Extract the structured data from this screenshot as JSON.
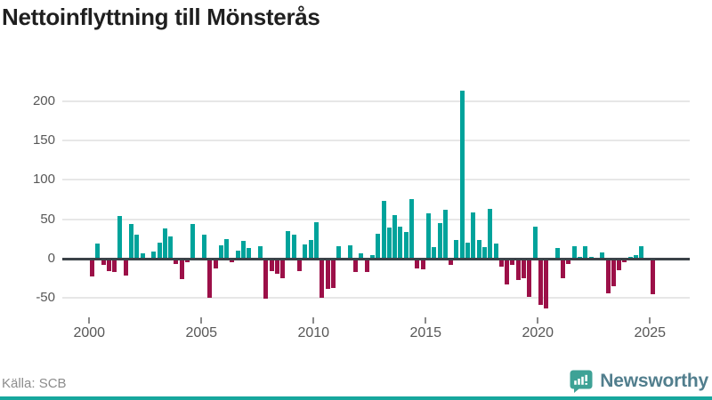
{
  "title": "Nettoinflyttning till Mönsterås",
  "source_label": "Källa: SCB",
  "logo": {
    "text": "Newsworthy",
    "icon": "newsworthy-speech-bubble-chart-icon"
  },
  "colors": {
    "positive_bar": "#00a39b",
    "negative_bar": "#9c1048",
    "title_text": "#1f1f1f",
    "axis_text": "#575757",
    "source_text": "#8c8c8c",
    "gridline": "#e7e7e7",
    "zero_line": "#3b4248",
    "logo_text": "#517e8d",
    "logo_bubble": "#3ea296",
    "bottom_strip": "#17a79d"
  },
  "chart_data": {
    "type": "bar",
    "title": "Nettoinflyttning till Mönsterås",
    "xlabel": "",
    "ylabel": "",
    "frequency": "quarterly",
    "legend": "none",
    "grid": "horizontal",
    "ylim": [
      -70,
      220
    ],
    "y_ticks": [
      200,
      150,
      100,
      50,
      0,
      -50
    ],
    "x_tick_years": [
      2000,
      2005,
      2010,
      2015,
      2020,
      2025
    ],
    "periods": [
      "2000Q1",
      "2000Q2",
      "2000Q3",
      "2000Q4",
      "2001Q1",
      "2001Q2",
      "2001Q3",
      "2001Q4",
      "2002Q1",
      "2002Q2",
      "2002Q3",
      "2002Q4",
      "2003Q1",
      "2003Q2",
      "2003Q3",
      "2003Q4",
      "2004Q1",
      "2004Q2",
      "2004Q3",
      "2004Q4",
      "2005Q1",
      "2005Q2",
      "2005Q3",
      "2005Q4",
      "2006Q1",
      "2006Q2",
      "2006Q3",
      "2006Q4",
      "2007Q1",
      "2007Q2",
      "2007Q3",
      "2007Q4",
      "2008Q1",
      "2008Q2",
      "2008Q3",
      "2008Q4",
      "2009Q1",
      "2009Q2",
      "2009Q3",
      "2009Q4",
      "2010Q1",
      "2010Q2",
      "2010Q3",
      "2010Q4",
      "2011Q1",
      "2011Q2",
      "2011Q3",
      "2011Q4",
      "2012Q1",
      "2012Q2",
      "2012Q3",
      "2012Q4",
      "2013Q1",
      "2013Q2",
      "2013Q3",
      "2013Q4",
      "2014Q1",
      "2014Q2",
      "2014Q3",
      "2014Q4",
      "2015Q1",
      "2015Q2",
      "2015Q3",
      "2015Q4",
      "2016Q1",
      "2016Q2",
      "2016Q3",
      "2016Q4",
      "2017Q1",
      "2017Q2",
      "2017Q3",
      "2017Q4",
      "2018Q1",
      "2018Q2",
      "2018Q3",
      "2018Q4",
      "2019Q1",
      "2019Q2",
      "2019Q3",
      "2019Q4",
      "2020Q1",
      "2020Q2",
      "2020Q3",
      "2020Q4",
      "2021Q1",
      "2021Q2",
      "2021Q3",
      "2021Q4",
      "2022Q1",
      "2022Q2",
      "2022Q3",
      "2022Q4",
      "2023Q1",
      "2023Q2",
      "2023Q3",
      "2023Q4",
      "2024Q1",
      "2024Q2",
      "2024Q3",
      "2024Q4",
      "2025Q1"
    ],
    "values": [
      -23,
      19,
      -8,
      -16,
      -17,
      54,
      -21,
      44,
      31,
      7,
      0,
      9,
      20,
      38,
      28,
      -7,
      -26,
      -4,
      44,
      0,
      31,
      -50,
      -12,
      17,
      25,
      -5,
      10,
      22,
      14,
      0,
      16,
      -51,
      -16,
      -19,
      -25,
      35,
      31,
      -16,
      18,
      24,
      46,
      -50,
      -38,
      -37,
      16,
      -2,
      17,
      -17,
      7,
      -17,
      5,
      32,
      73,
      39,
      55,
      41,
      34,
      76,
      -12,
      -14,
      57,
      15,
      45,
      62,
      -8,
      24,
      213,
      20,
      59,
      24,
      15,
      63,
      19,
      -10,
      -33,
      -8,
      -27,
      -25,
      -48,
      41,
      -59,
      -63,
      0,
      14,
      -25,
      -7,
      16,
      2,
      16,
      2,
      0,
      8,
      -44,
      -35,
      -15,
      -4,
      2,
      4,
      16,
      0,
      -45
    ],
    "positive_color": "#00a39b",
    "negative_color": "#9c1048"
  }
}
